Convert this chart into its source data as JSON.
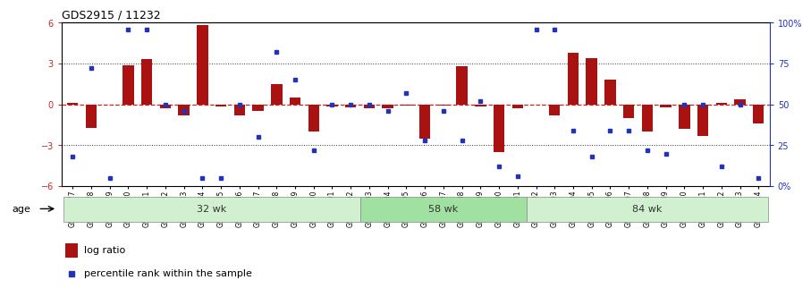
{
  "title": "GDS2915 / 11232",
  "samples": [
    "GSM97277",
    "GSM97278",
    "GSM97279",
    "GSM97280",
    "GSM97281",
    "GSM97282",
    "GSM97283",
    "GSM97284",
    "GSM97285",
    "GSM97286",
    "GSM97287",
    "GSM97288",
    "GSM97289",
    "GSM97290",
    "GSM97291",
    "GSM97292",
    "GSM97293",
    "GSM97294",
    "GSM97295",
    "GSM97296",
    "GSM97297",
    "GSM97298",
    "GSM97299",
    "GSM97300",
    "GSM97301",
    "GSM97302",
    "GSM97303",
    "GSM97304",
    "GSM97305",
    "GSM97306",
    "GSM97307",
    "GSM97308",
    "GSM97309",
    "GSM97310",
    "GSM97311",
    "GSM97312",
    "GSM97313",
    "GSM97314"
  ],
  "log_ratio": [
    0.1,
    -1.7,
    0.0,
    2.9,
    3.3,
    -0.3,
    -0.8,
    5.85,
    -0.15,
    -0.8,
    -0.5,
    1.5,
    0.5,
    -2.0,
    -0.15,
    -0.2,
    -0.3,
    -0.25,
    -0.1,
    -2.5,
    -0.1,
    2.8,
    -0.15,
    -3.5,
    -0.3,
    0.0,
    -0.8,
    3.8,
    3.4,
    1.85,
    -1.0,
    -2.0,
    -0.2,
    -1.8,
    -2.3,
    0.1,
    0.4,
    -1.4
  ],
  "percentile": [
    18,
    72,
    5,
    96,
    96,
    50,
    46,
    5,
    5,
    50,
    30,
    82,
    65,
    22,
    50,
    50,
    50,
    46,
    57,
    28,
    46,
    28,
    52,
    12,
    6,
    96,
    96,
    34,
    18,
    34,
    34,
    22,
    20,
    50,
    50,
    12,
    50,
    5
  ],
  "groups": [
    {
      "label": "32 wk",
      "start": 0,
      "end": 16
    },
    {
      "label": "58 wk",
      "start": 16,
      "end": 25
    },
    {
      "label": "84 wk",
      "start": 25,
      "end": 38
    }
  ],
  "group_colors": [
    "#d0f0d0",
    "#a0e0a0",
    "#d0f0d0"
  ],
  "ylim": [
    -6,
    6
  ],
  "bar_color": "#aa1111",
  "dot_color": "#2233bb",
  "zero_line_color": "#cc2222",
  "bg_color": "#ffffff"
}
